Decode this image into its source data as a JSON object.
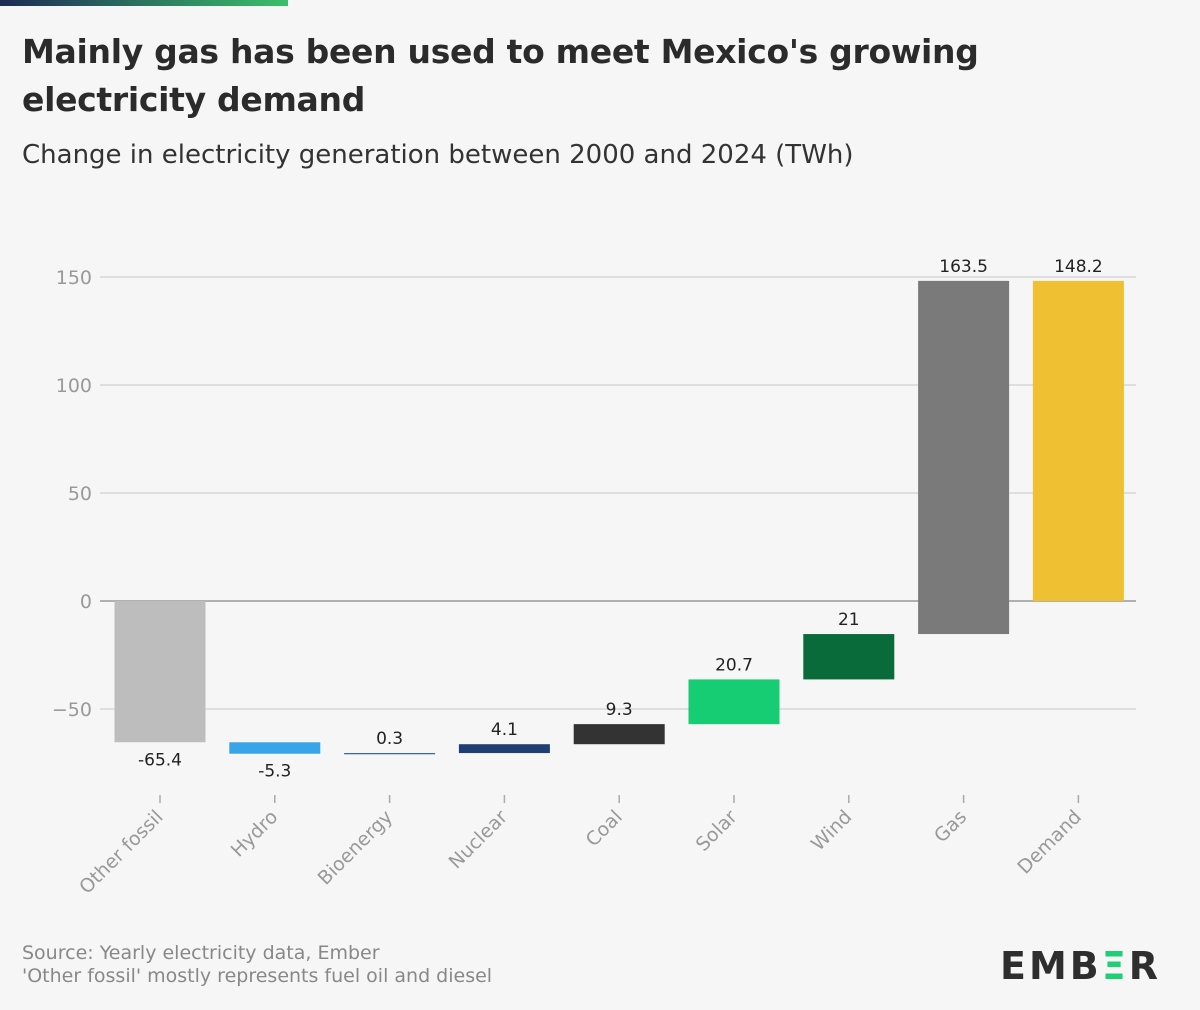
{
  "title": "Mainly gas has been used to meet Mexico's growing electricity demand",
  "subtitle": "Change in electricity generation between 2000 and 2024 (TWh)",
  "source": "Source: Yearly electricity data, Ember",
  "note": "'Other fossil' mostly represents fuel oil and diesel",
  "logo": {
    "text": "EMBER",
    "accent_color": "#1fcf75"
  },
  "chart_data": {
    "type": "waterfall",
    "categories": [
      "Other fossil",
      "Hydro",
      "Bioenergy",
      "Nuclear",
      "Coal",
      "Solar",
      "Wind",
      "Gas",
      "Demand"
    ],
    "values": [
      -65.4,
      -5.3,
      0.3,
      4.1,
      9.3,
      20.7,
      21,
      163.5,
      148.2
    ],
    "labels": [
      "-65.4",
      "-5.3",
      "0.3",
      "4.1",
      "9.3",
      "20.7",
      "21",
      "163.5",
      "148.2"
    ],
    "total_category": "Demand",
    "colors": [
      "#bdbdbd",
      "#3aa4e8",
      "#2f5fa0",
      "#1e3f73",
      "#333333",
      "#16cd74",
      "#0a6b3a",
      "#7a7a7a",
      "#efc132"
    ],
    "ylim": [
      -80,
      160
    ],
    "yticks": [
      150,
      100,
      50,
      0,
      -50
    ],
    "grid": true
  }
}
